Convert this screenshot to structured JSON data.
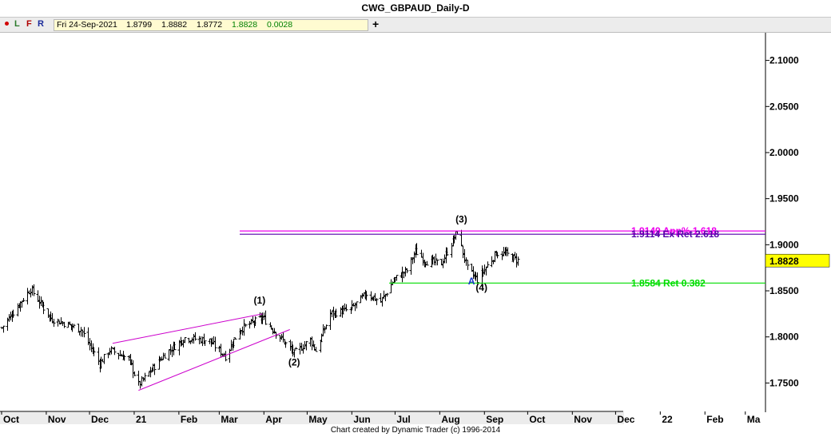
{
  "window": {
    "title": "CWG_GBPAUD_Daily-D"
  },
  "toolbar": {
    "letters": [
      "L",
      "F",
      "R"
    ],
    "info": {
      "date": "Fri 24-Sep-2021",
      "open": "1.8799",
      "high": "1.8882",
      "low": "1.8772",
      "close": "1.8828",
      "change": "0.0028"
    },
    "plus_label": "+"
  },
  "footer": {
    "credit": "Chart created by Dynamic Trader  (c) 1996-2014"
  },
  "colors": {
    "background": "#ffffff",
    "bars": "#000000",
    "magenta": "#cc00cc",
    "purple": "#5500aa",
    "green": "#00dd00",
    "blue": "#1a3acc",
    "price_tag": "#ffff00"
  },
  "chart_data": {
    "type": "ohlc",
    "y_axis": {
      "range": [
        1.72,
        2.13
      ],
      "ticks": [
        "2.1000",
        "2.0500",
        "2.0000",
        "1.9500",
        "1.9000",
        "1.8500",
        "1.8000",
        "1.7500"
      ]
    },
    "x_axis": {
      "range": [
        "2020-10-01",
        "2022-03-15"
      ],
      "labels": [
        "Oct",
        "Nov",
        "Dec",
        "21",
        "Feb",
        "Mar",
        "Apr",
        "May",
        "Jun",
        "Jul",
        "Aug",
        "Sep",
        "Oct",
        "Nov",
        "Dec",
        "22",
        "Feb",
        "Ma"
      ]
    },
    "last_price": "1.8828",
    "wave_labels": [
      {
        "text": "(1)",
        "date": "2021-03-29",
        "price": 1.836
      },
      {
        "text": "(2)",
        "date": "2021-04-22",
        "price": 1.769
      },
      {
        "text": "(3)",
        "date": "2021-08-16",
        "price": 1.924
      },
      {
        "text": "(4)",
        "date": "2021-08-30",
        "price": 1.85
      },
      {
        "text": "A",
        "date": "2021-08-23",
        "price": 1.857
      }
    ],
    "levels": [
      {
        "price": 1.9149,
        "label": "1.9149 App% 1.618",
        "color": "#ee00ee"
      },
      {
        "price": 1.9114,
        "label": "1.9114 Ex Ret 2.618",
        "color": "#5500aa"
      },
      {
        "price": 1.8584,
        "label": "1.8584 Ret 0.382",
        "color": "#00dd00"
      }
    ],
    "trendlines": [
      {
        "from": [
          "2020-12-17",
          1.793
        ],
        "to": [
          "2021-03-31",
          1.825
        ]
      },
      {
        "from": [
          "2021-01-04",
          1.742
        ],
        "to": [
          "2021-04-19",
          1.808
        ]
      }
    ],
    "anchors": [
      [
        "2020-10-01",
        1.81
      ],
      [
        "2020-10-21",
        1.852
      ],
      [
        "2020-11-04",
        1.82
      ],
      [
        "2020-11-25",
        1.808
      ],
      [
        "2020-12-08",
        1.771
      ],
      [
        "2020-12-15",
        1.786
      ],
      [
        "2020-12-28",
        1.776
      ],
      [
        "2021-01-04",
        1.748
      ],
      [
        "2021-01-22",
        1.781
      ],
      [
        "2021-02-05",
        1.799
      ],
      [
        "2021-02-22",
        1.796
      ],
      [
        "2021-03-05",
        1.779
      ],
      [
        "2021-03-15",
        1.808
      ],
      [
        "2021-03-31",
        1.821
      ],
      [
        "2021-04-09",
        1.805
      ],
      [
        "2021-04-22",
        1.782
      ],
      [
        "2021-05-03",
        1.797
      ],
      [
        "2021-05-07",
        1.785
      ],
      [
        "2021-05-17",
        1.825
      ],
      [
        "2021-05-31",
        1.83
      ],
      [
        "2021-06-11",
        1.847
      ],
      [
        "2021-06-21",
        1.838
      ],
      [
        "2021-06-30",
        1.862
      ],
      [
        "2021-07-09",
        1.872
      ],
      [
        "2021-07-15",
        1.893
      ],
      [
        "2021-07-22",
        1.882
      ],
      [
        "2021-08-02",
        1.88
      ],
      [
        "2021-08-13",
        1.914
      ],
      [
        "2021-08-20",
        1.874
      ],
      [
        "2021-08-27",
        1.862
      ],
      [
        "2021-09-09",
        1.891
      ],
      [
        "2021-09-16",
        1.89
      ],
      [
        "2021-09-24",
        1.883
      ]
    ]
  }
}
